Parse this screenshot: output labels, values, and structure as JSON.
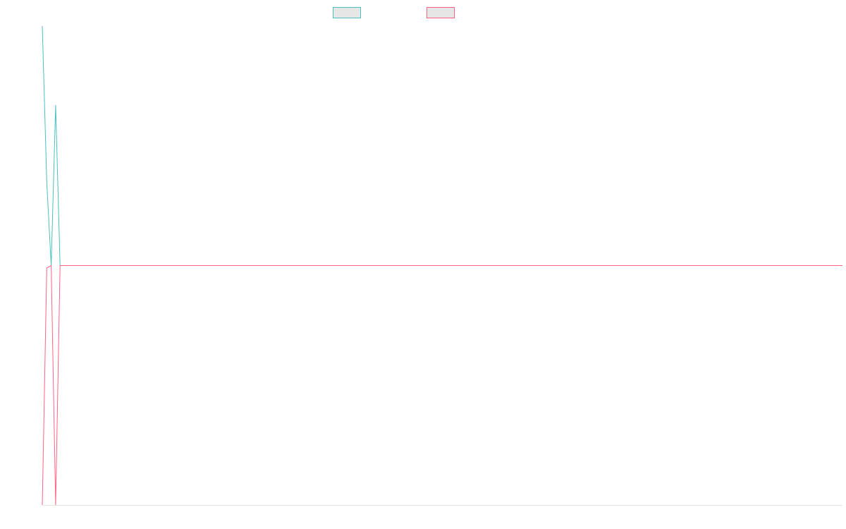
{
  "chart_data": {
    "type": "line",
    "title": "",
    "xlabel": "",
    "ylabel": "",
    "x": [
      0,
      1,
      2,
      3,
      4,
      5,
      6,
      7,
      8,
      9,
      10,
      11,
      12,
      13,
      14,
      15,
      16,
      17,
      18,
      19,
      20,
      21,
      22,
      23,
      24,
      25,
      26,
      27,
      28,
      29,
      30,
      31,
      32,
      33,
      34,
      35,
      36,
      37,
      38,
      39,
      40,
      41,
      42,
      43,
      44,
      45,
      46,
      47,
      48,
      49,
      50,
      51,
      52,
      53,
      54,
      55,
      56,
      57,
      58,
      59,
      60,
      61,
      62,
      63,
      64,
      65,
      66,
      67,
      68,
      69,
      70,
      71,
      72,
      73,
      74,
      75,
      76,
      77,
      78,
      79,
      80,
      81,
      82,
      83,
      84,
      85,
      86,
      87,
      88,
      89,
      90,
      91,
      92,
      93,
      94,
      95,
      96,
      97,
      98,
      99,
      100,
      101,
      102,
      103,
      104,
      105,
      106,
      107,
      108,
      109,
      110,
      111,
      112,
      113,
      114,
      115,
      116,
      117,
      118,
      119,
      120,
      121,
      122,
      123,
      124,
      125,
      126,
      127,
      128,
      129,
      130,
      131,
      132,
      133,
      134,
      135,
      136,
      137,
      138,
      139,
      140,
      141,
      142,
      143,
      144,
      145,
      146,
      147,
      148,
      149,
      150,
      151,
      152,
      153,
      154,
      155,
      156,
      157,
      158,
      159,
      160,
      161,
      162,
      163,
      164,
      165,
      166,
      167,
      168,
      169,
      170,
      171,
      172,
      173,
      174,
      175,
      176,
      177,
      178,
      179,
      180
    ],
    "series": [
      {
        "name": "",
        "color": "#4bc0c0",
        "values": [
          1.0,
          0.35,
          0.0,
          0.67,
          0.0,
          0,
          0,
          0,
          0,
          0,
          0,
          0,
          0,
          0,
          0,
          0,
          0,
          0,
          0,
          0,
          0,
          0,
          0,
          0,
          0,
          0,
          0,
          0,
          0,
          0,
          0,
          0,
          0,
          0,
          0,
          0,
          0,
          0,
          0,
          0,
          0,
          0,
          0,
          0,
          0,
          0,
          0,
          0,
          0,
          0,
          0,
          0,
          0,
          0,
          0,
          0,
          0,
          0,
          0,
          0,
          0,
          0,
          0,
          0,
          0,
          0,
          0,
          0,
          0,
          0,
          0,
          0,
          0,
          0,
          0,
          0,
          0,
          0,
          0,
          0,
          0,
          0,
          0,
          0,
          0,
          0,
          0,
          0,
          0,
          0,
          0,
          0,
          0,
          0,
          0,
          0,
          0,
          0,
          0,
          0,
          0,
          0,
          0,
          0,
          0,
          0,
          0,
          0,
          0,
          0,
          0,
          0,
          0,
          0,
          0,
          0,
          0,
          0,
          0,
          0,
          0,
          0,
          0,
          0,
          0,
          0,
          0,
          0,
          0,
          0,
          0,
          0,
          0,
          0,
          0,
          0,
          0,
          0,
          0,
          0,
          0,
          0,
          0,
          0,
          0,
          0,
          0,
          0,
          0,
          0,
          0,
          0,
          0,
          0,
          0,
          0,
          0,
          0,
          0,
          0,
          0,
          0,
          0,
          0,
          0,
          0,
          0,
          0,
          0,
          0,
          0,
          0,
          0,
          0,
          0,
          0,
          0,
          0,
          0,
          0,
          0
        ]
      },
      {
        "name": "",
        "color": "#ff6384",
        "values": [
          -1.0,
          -0.01,
          0.0,
          -1.0,
          0.0,
          0,
          0,
          0,
          0,
          0,
          0,
          0,
          0,
          0,
          0,
          0,
          0,
          0,
          0,
          0,
          0,
          0,
          0,
          0,
          0,
          0,
          0,
          0,
          0,
          0,
          0,
          0,
          0,
          0,
          0,
          0,
          0,
          0,
          0,
          0,
          0,
          0,
          0,
          0,
          0,
          0,
          0,
          0,
          0,
          0,
          0,
          0,
          0,
          0,
          0,
          0,
          0,
          0,
          0,
          0,
          0,
          0,
          0,
          0,
          0,
          0,
          0,
          0,
          0,
          0,
          0,
          0,
          0,
          0,
          0,
          0,
          0,
          0,
          0,
          0,
          0,
          0,
          0,
          0,
          0,
          0,
          0,
          0,
          0,
          0,
          0,
          0,
          0,
          0,
          0,
          0,
          0,
          0,
          0,
          0,
          0,
          0,
          0,
          0,
          0,
          0,
          0,
          0,
          0,
          0,
          0,
          0,
          0,
          0,
          0,
          0,
          0,
          0,
          0,
          0,
          0,
          0,
          0,
          0,
          0,
          0,
          0,
          0,
          0,
          0,
          0,
          0,
          0,
          0,
          0,
          0,
          0,
          0,
          0,
          0,
          0,
          0,
          0,
          0,
          0,
          0,
          0,
          0,
          0,
          0,
          0,
          0,
          0,
          0,
          0,
          0,
          0,
          0,
          0,
          0,
          0,
          0,
          0,
          0,
          0,
          0,
          0,
          0,
          0,
          0,
          0,
          0,
          0,
          0,
          0,
          0,
          0,
          0,
          0,
          0,
          0
        ]
      }
    ],
    "ylim": [
      -1,
      1
    ],
    "grid": false,
    "legend_position": "top-center",
    "legend_swatch_fill": "#e6e6e6"
  }
}
